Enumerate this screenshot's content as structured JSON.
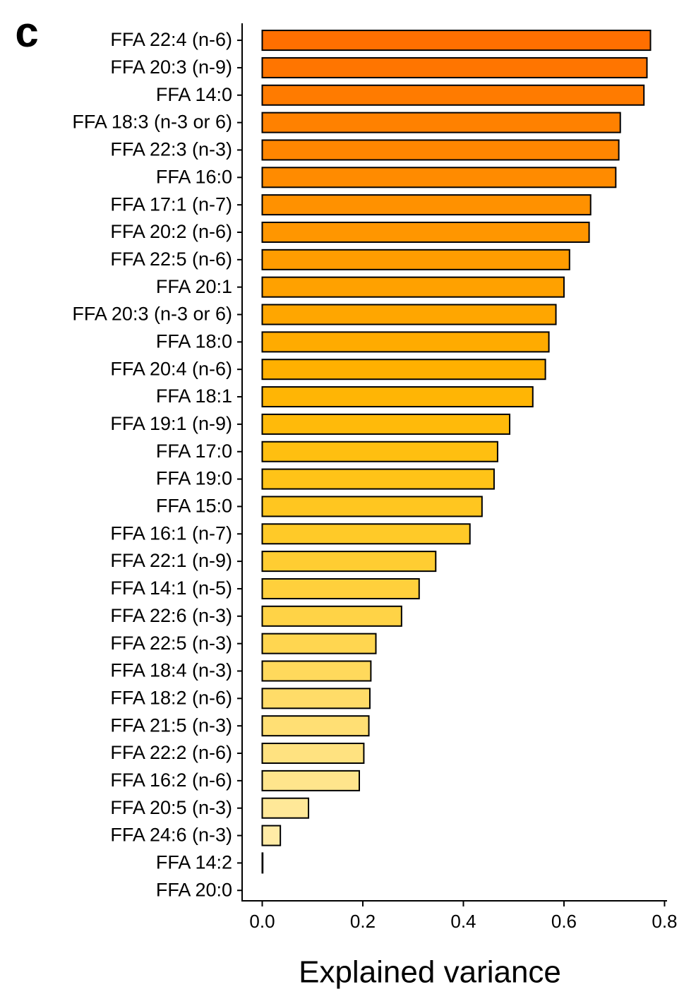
{
  "panel_label": "c",
  "chart_data": {
    "type": "barh",
    "xlabel": "Explained variance",
    "categories": [
      "FFA 22:4 (n-6)",
      "FFA 20:3 (n-9)",
      "FFA 14:0",
      "FFA 18:3 (n-3 or 6)",
      "FFA 22:3 (n-3)",
      "FFA 16:0",
      "FFA 17:1 (n-7)",
      "FFA 20:2 (n-6)",
      "FFA 22:5 (n-6)",
      "FFA 20:1",
      "FFA 20:3 (n-3 or 6)",
      "FFA 18:0",
      "FFA 20:4 (n-6)",
      "FFA 18:1",
      "FFA 19:1 (n-9)",
      "FFA 17:0",
      "FFA 19:0",
      "FFA 15:0",
      "FFA 16:1 (n-7)",
      "FFA 22:1 (n-9)",
      "FFA 14:1 (n-5)",
      "FFA 22:6 (n-3)",
      "FFA 22:5 (n-3)",
      "FFA 18:4 (n-3)",
      "FFA 18:2 (n-6)",
      "FFA 21:5 (n-3)",
      "FFA 22:2 (n-6)",
      "FFA 16:2 (n-6)",
      "FFA 20:5 (n-3)",
      "FFA 24:6 (n-3)",
      "FFA 14:2",
      "FFA 20:0"
    ],
    "values": [
      0.772,
      0.765,
      0.759,
      0.712,
      0.709,
      0.703,
      0.653,
      0.65,
      0.611,
      0.6,
      0.584,
      0.57,
      0.563,
      0.538,
      0.492,
      0.468,
      0.461,
      0.437,
      0.413,
      0.345,
      0.312,
      0.277,
      0.226,
      0.216,
      0.214,
      0.212,
      0.202,
      0.193,
      0.092,
      0.036,
      0.001,
      0
    ],
    "colors": [
      "#ff6f00",
      "#ff7500",
      "#ff7b00",
      "#ff8100",
      "#ff8600",
      "#ff8b00",
      "#ff9100",
      "#ff9600",
      "#ff9c00",
      "#ffa100",
      "#ffa600",
      "#ffab00",
      "#ffb000",
      "#ffb505",
      "#ffba0a",
      "#ffbf10",
      "#ffc318",
      "#ffc620",
      "#ffca28",
      "#ffcd32",
      "#ffd03c",
      "#ffd346",
      "#ffd650",
      "#ffd95c",
      "#ffdc68",
      "#ffdf74",
      "#ffe280",
      "#ffe58c",
      "#ffe898",
      "#ffeba6",
      "#ffeeb4",
      "#fff1c0"
    ],
    "xlim": [
      -0.04,
      0.805
    ],
    "xticks": [
      {
        "value": 0,
        "label": "0.0"
      },
      0.2,
      0.4,
      0.6,
      0.8
    ]
  }
}
